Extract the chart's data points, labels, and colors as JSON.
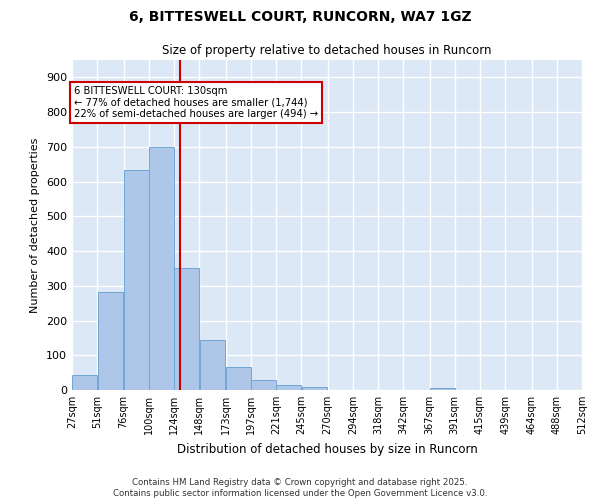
{
  "title": "6, BITTESWELL COURT, RUNCORN, WA7 1GZ",
  "subtitle": "Size of property relative to detached houses in Runcorn",
  "xlabel": "Distribution of detached houses by size in Runcorn",
  "ylabel": "Number of detached properties",
  "bin_labels": [
    "27sqm",
    "51sqm",
    "76sqm",
    "100sqm",
    "124sqm",
    "148sqm",
    "173sqm",
    "197sqm",
    "221sqm",
    "245sqm",
    "270sqm",
    "294sqm",
    "318sqm",
    "342sqm",
    "367sqm",
    "391sqm",
    "415sqm",
    "439sqm",
    "464sqm",
    "488sqm",
    "512sqm"
  ],
  "bar_values": [
    42,
    283,
    634,
    700,
    350,
    143,
    65,
    28,
    15,
    10,
    0,
    0,
    0,
    0,
    5,
    0,
    0,
    0,
    0,
    0,
    0
  ],
  "bar_color": "#aec6e8",
  "bar_edge_color": "#6fa8d4",
  "vline_color": "#cc0000",
  "ylim": [
    0,
    950
  ],
  "yticks": [
    0,
    100,
    200,
    300,
    400,
    500,
    600,
    700,
    800,
    900
  ],
  "background_color": "#dce8f5",
  "grid_color": "#ffffff",
  "annotation_box_color": "#ffffff",
  "annotation_box_edge": "#cc0000",
  "property_line_label": "6 BITTESWELL COURT: 130sqm",
  "annotation_line1": "← 77% of detached houses are smaller (1,744)",
  "annotation_line2": "22% of semi-detached houses are larger (494) →",
  "footer": "Contains HM Land Registry data © Crown copyright and database right 2025.\nContains public sector information licensed under the Open Government Licence v3.0.",
  "bin_edges": [
    27,
    51,
    76,
    100,
    124,
    148,
    173,
    197,
    221,
    245,
    270,
    294,
    318,
    342,
    367,
    391,
    415,
    439,
    464,
    488,
    512
  ],
  "fig_bg": "#ffffff"
}
